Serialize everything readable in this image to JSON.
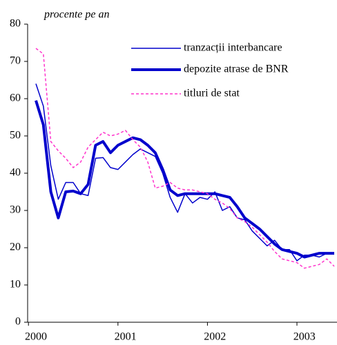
{
  "chart_data": {
    "type": "line",
    "ylabel": "procente pe an",
    "categories": [
      "2000",
      null,
      null,
      null,
      null,
      null,
      null,
      null,
      null,
      null,
      null,
      null,
      "2001",
      null,
      null,
      null,
      null,
      null,
      null,
      null,
      null,
      null,
      null,
      null,
      "2002",
      null,
      null,
      null,
      null,
      null,
      null,
      null,
      null,
      null,
      null,
      null,
      "2003",
      null,
      null,
      null,
      null
    ],
    "series": [
      {
        "name": "tranzacții interbancare",
        "color": "#0000cc",
        "width": 1.5,
        "dash": false,
        "values": [
          64,
          58,
          42,
          33,
          37.5,
          37.5,
          34.5,
          34,
          44,
          44.2,
          41.5,
          41,
          43,
          45,
          46.5,
          45.5,
          44.5,
          40,
          33.5,
          29.5,
          34.5,
          32,
          33.5,
          33,
          35,
          30,
          31,
          28,
          27.5,
          24.5,
          22.5,
          20.5,
          22,
          19.5,
          19.5,
          16.5,
          18,
          18,
          17.5,
          18.5,
          18.5
        ]
      },
      {
        "name": "depozite atrase de BNR",
        "color": "#0000cc",
        "width": 4,
        "dash": false,
        "values": [
          59.5,
          53,
          35,
          28,
          35,
          35.2,
          34.5,
          37,
          47.5,
          48.5,
          45.5,
          47.5,
          48.5,
          49.5,
          49,
          47.5,
          45.5,
          41,
          35.5,
          34,
          34.5,
          34.5,
          34.5,
          34.5,
          34.5,
          34,
          33.5,
          31,
          28,
          26.5,
          25,
          23,
          21,
          19.5,
          19,
          18.5,
          17.5,
          18,
          18.5,
          18.5,
          18.5
        ]
      },
      {
        "name": "titluri de stat",
        "color": "#ff33cc",
        "width": 1.5,
        "dash": true,
        "values": [
          73.5,
          72,
          48.5,
          46,
          44,
          41.5,
          43,
          47,
          49,
          51,
          50,
          50.5,
          51.5,
          49,
          47,
          43,
          36,
          36.5,
          37.5,
          36,
          35.5,
          35.5,
          35,
          34.5,
          33,
          32,
          30.5,
          28,
          27,
          25.5,
          23.5,
          21.5,
          19,
          17,
          16.5,
          16,
          14.5,
          15,
          15.5,
          17,
          15
        ]
      }
    ],
    "ylim": [
      0,
      80
    ],
    "yticks": [
      0,
      10,
      20,
      30,
      40,
      50,
      60,
      70,
      80
    ]
  }
}
